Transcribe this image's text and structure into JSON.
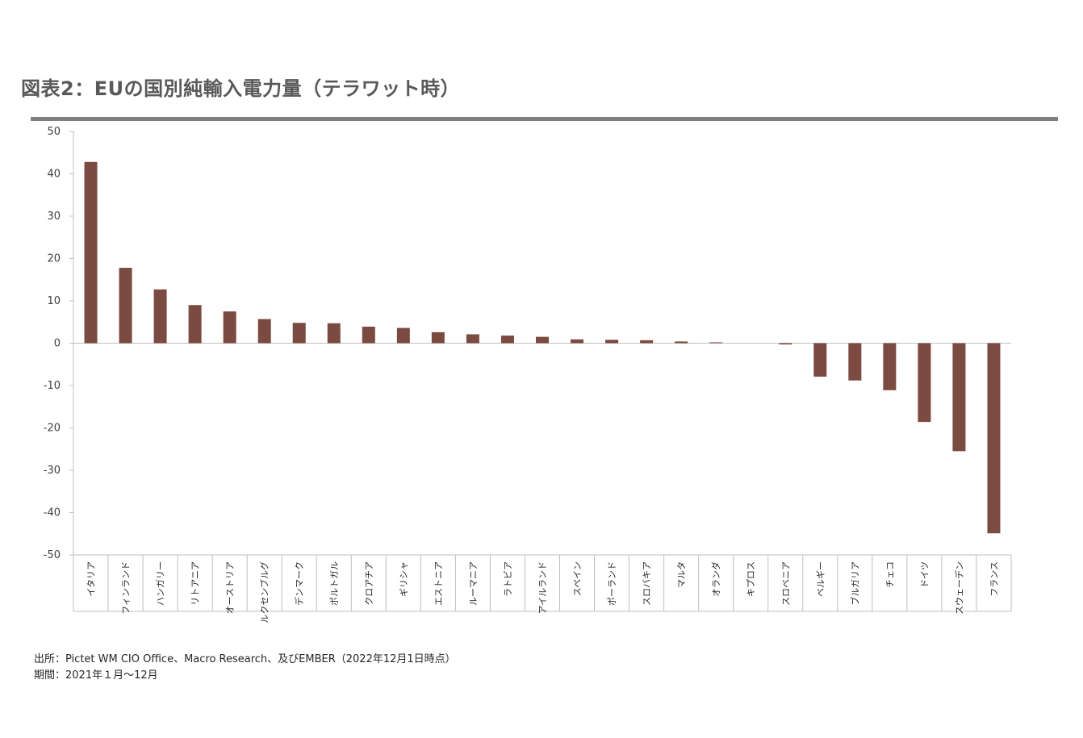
{
  "header": {
    "title": "図表2：EUの国別純輸入電力量（テラワット時）"
  },
  "footer": {
    "source": "出所：Pictet WM CIO Office、Macro Research、及びEMBER（2022年12月1日時点）",
    "period": "期間：2021年１月～12月"
  },
  "colors": {
    "bar": "#7b4a40",
    "axis": "#bfbfbf",
    "title_rule": "#7f7f7f"
  },
  "chart_data": {
    "type": "bar",
    "title": "",
    "xlabel": "",
    "ylabel": "",
    "ylim": [
      -50,
      50
    ],
    "yticks": [
      50,
      40,
      30,
      20,
      10,
      0,
      -10,
      -20,
      -30,
      -40,
      -50
    ],
    "grid": false,
    "categories": [
      "イタリア",
      "フィンランド",
      "ハンガリー",
      "リトアニア",
      "オーストリア",
      "ルクセンブルグ",
      "デンマーク",
      "ポルトガル",
      "クロアチア",
      "ギリシャ",
      "エストニア",
      "ルーマニア",
      "ラトビア",
      "アイルランド",
      "スペイン",
      "ポーランド",
      "スロバキア",
      "マルタ",
      "オランダ",
      "キプロス",
      "スロベニア",
      "ベルギー",
      "ブルガリア",
      "チェコ",
      "ドイツ",
      "スウェーデン",
      "フランス"
    ],
    "values": [
      42.8,
      17.8,
      12.7,
      9.0,
      7.5,
      5.7,
      4.8,
      4.7,
      3.9,
      3.6,
      2.6,
      2.1,
      1.8,
      1.5,
      0.9,
      0.8,
      0.7,
      0.4,
      0.2,
      0.0,
      -0.3,
      -7.9,
      -8.8,
      -11.1,
      -18.6,
      -25.5,
      -44.9
    ]
  }
}
